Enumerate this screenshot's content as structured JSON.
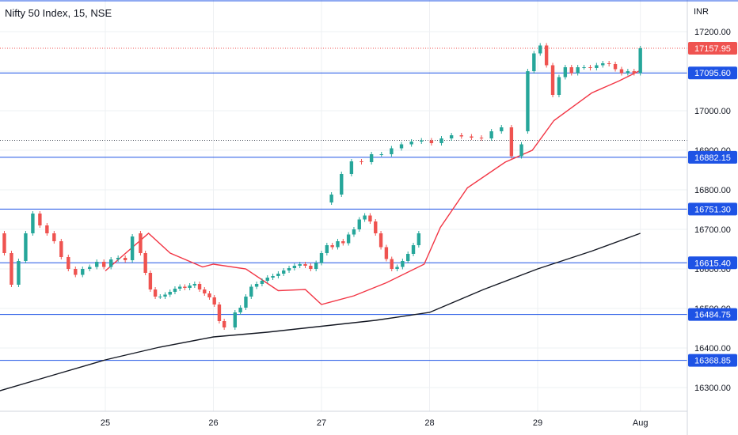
{
  "header": {
    "title": "Nifty 50 Index, 15, NSE",
    "currency": "INR"
  },
  "colors": {
    "up": "#26a69a",
    "down": "#ef5350",
    "level_line": "#1e53e5",
    "sma_fast": "#f23645",
    "sma_slow": "#131722",
    "grid": "#eef0f3"
  },
  "chart_data": {
    "type": "candlestick",
    "ylim": [
      16240,
      17280
    ],
    "y_ticks": [
      {
        "value": 16300,
        "label": "16300.00"
      },
      {
        "value": 16400,
        "label": "16400.00"
      },
      {
        "value": 16500,
        "label": "16500.00"
      },
      {
        "value": 16600,
        "label": "16600.00"
      },
      {
        "value": 16700,
        "label": "16700.00"
      },
      {
        "value": 16800,
        "label": "16800.00"
      },
      {
        "value": 16900,
        "label": "16900.00"
      },
      {
        "value": 17000,
        "label": "17000.00"
      },
      {
        "value": 17100,
        "label": "17100.00"
      },
      {
        "value": 17200,
        "label": "17200.00"
      }
    ],
    "x_ticks": [
      "25",
      "26",
      "27",
      "28",
      "29",
      "Aug"
    ],
    "horizontal_levels": [
      {
        "value": 17095.6,
        "label": "17095.60"
      },
      {
        "value": 16882.15,
        "label": "16882.15"
      },
      {
        "value": 16751.3,
        "label": "16751.30"
      },
      {
        "value": 16615.4,
        "label": "16615.40"
      },
      {
        "value": 16484.75,
        "label": "16484.75"
      },
      {
        "value": 16368.85,
        "label": "16368.85"
      }
    ],
    "dotted_levels": [
      16925
    ],
    "last_price": {
      "value": 17157.95,
      "label": "17157.95"
    },
    "sessions": [
      [
        16690,
        16640,
        16560,
        16620,
        16690,
        16740,
        16710,
        16690,
        16670,
        16630,
        16600,
        16585,
        16600,
        16605,
        16618,
        16605,
        16624,
        16628,
        16622,
        16682
      ],
      [
        16690,
        16640,
        16590,
        16548,
        16530,
        16530,
        16535,
        16542,
        16550,
        16555,
        16552,
        16558,
        16562,
        16548,
        16538,
        16528,
        16510,
        16468,
        16452
      ],
      [
        16452,
        16490,
        16502,
        16530,
        16555,
        16562,
        16570,
        16578,
        16582,
        16588,
        16596,
        16602,
        16608,
        16612,
        16608,
        16600,
        16615,
        16640,
        16660,
        16655,
        16670,
        16665,
        16687,
        16700,
        16725,
        16735,
        16720,
        16690,
        16655,
        16625,
        16600,
        16605,
        16620,
        16638,
        16660,
        16690
      ],
      [
        16768,
        16788,
        16840,
        16872,
        16870,
        16890,
        16890,
        16905,
        16915,
        16922,
        16925,
        16918,
        16930,
        16938,
        16935,
        16932,
        16930,
        16948,
        16958,
        16885,
        16915
      ],
      [
        16948,
        17100,
        17145,
        17165,
        17115,
        17040,
        17085,
        17110,
        17095,
        17110,
        17110,
        17108,
        17115,
        17120,
        17118,
        17105,
        17095,
        17100,
        17095,
        17158
      ]
    ],
    "series": [
      {
        "name": "",
        "type": "sma_fast",
        "x": [
          25,
          25.4,
          25.6,
          25.9,
          26,
          26.3,
          26.6,
          26.85,
          27,
          27.3,
          27.6,
          27.95,
          28.1,
          28.35,
          28.7,
          28.95,
          29.15,
          29.5,
          29.75,
          29.95
        ],
        "values": [
          16595,
          16690,
          16640,
          16605,
          16612,
          16600,
          16545,
          16548,
          16510,
          16532,
          16565,
          16612,
          16705,
          16805,
          16870,
          16900,
          16975,
          17045,
          17075,
          17102
        ]
      },
      {
        "name": "",
        "type": "sma_slow",
        "x": [
          24.0,
          24.5,
          25.0,
          25.5,
          26.0,
          26.5,
          27.0,
          27.5,
          28.0,
          28.5,
          29.0,
          29.5,
          29.95
        ],
        "values": [
          16290,
          16330,
          16370,
          16402,
          16428,
          16440,
          16455,
          16470,
          16490,
          16548,
          16600,
          16645,
          16690
        ]
      }
    ]
  }
}
